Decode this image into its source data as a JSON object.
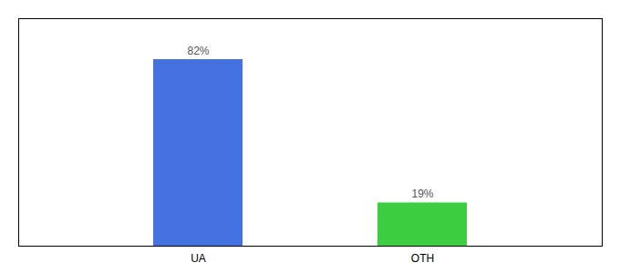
{
  "chart_data": {
    "type": "bar",
    "categories": [
      "UA",
      "OTH"
    ],
    "values": [
      82,
      19
    ],
    "value_labels": [
      "82%",
      "19%"
    ],
    "colors": [
      "#4472e0",
      "#3dcd40"
    ],
    "ylim": [
      0,
      100
    ],
    "data_labels": true,
    "tick_labels": "x"
  }
}
